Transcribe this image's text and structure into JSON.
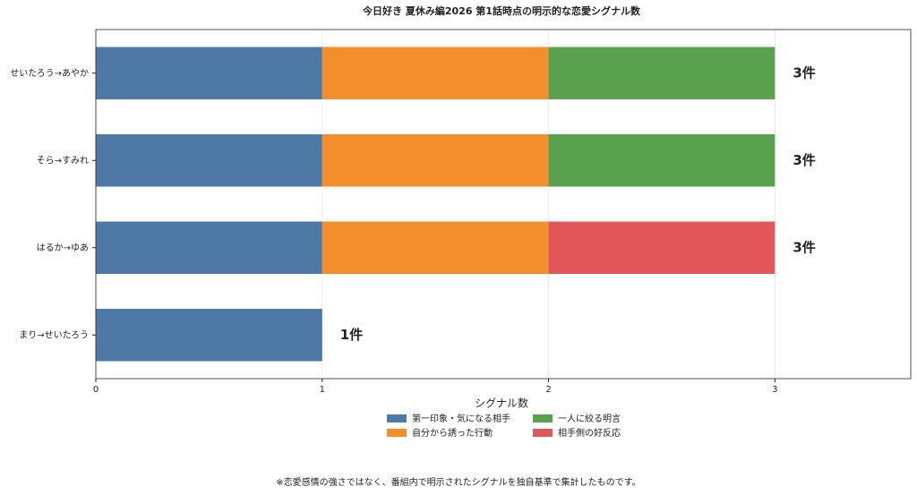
{
  "chart_data": {
    "type": "stacked-barh",
    "title": "今日好き 夏休み編2026 第1話時点の明示的な恋愛シグナル数",
    "categories": [
      "せいたろう→あやか",
      "そら→すみれ",
      "はるか→ゆあ",
      "まり→せいたろう"
    ],
    "series": [
      {
        "name": "第一印象・気になる相手",
        "color": "#4e79a7",
        "values": [
          1,
          1,
          1,
          1
        ]
      },
      {
        "name": "自分から誘った行動",
        "color": "#f28e2b",
        "values": [
          1,
          1,
          1,
          0
        ]
      },
      {
        "name": "一人に絞る明言",
        "color": "#59a14f",
        "values": [
          1,
          1,
          0,
          0
        ]
      },
      {
        "name": "相手側の好反応",
        "color": "#e15759",
        "values": [
          0,
          0,
          1,
          0
        ]
      }
    ],
    "totals": [
      3,
      3,
      3,
      1
    ],
    "value_labels": [
      "3件",
      "3件",
      "3件",
      "1件"
    ],
    "xlim": [
      0,
      3.6
    ],
    "xticks": [
      0,
      1,
      2,
      3
    ],
    "grid": true,
    "legend_title": "シグナル数",
    "legend": "bottom",
    "footnote": "※恋愛感情の強さではなく、番組内で明示されたシグナルを独自基準で集計したものです。"
  }
}
